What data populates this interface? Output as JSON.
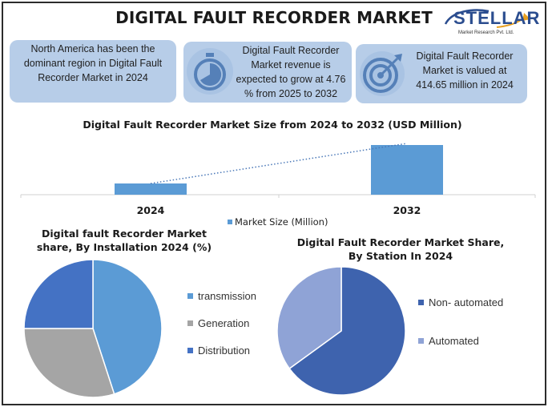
{
  "title": "DIGITAL FAULT RECORDER MARKET",
  "logo": {
    "brand": "STELLAR",
    "subtitle": "Market Research Pvt. Ltd."
  },
  "info_boxes": [
    {
      "text": "North America has been the dominant region in Digital Fault Recorder Market in 2024",
      "icon": ""
    },
    {
      "text": "Digital Fault Recorder Market revenue is expected to grow at 4.76 % from 2025 to 2032",
      "icon": "stopwatch-icon"
    },
    {
      "text": "Digital Fault Recorder Market is valued at 414.65 million in 2024",
      "icon": "target-icon"
    }
  ],
  "colors": {
    "box_bg": "#b7cde8",
    "bar": "#5b9bd5",
    "icon": "#5580b8",
    "transmission": "#5b9bd5",
    "generation": "#a5a5a5",
    "distribution": "#4472c4",
    "non_automated": "#3e63ae",
    "automated": "#8fa3d6"
  },
  "chart_data": [
    {
      "type": "bar",
      "title": "Digital Fault Recorder Market Size from 2024 to 2032 (USD Million)",
      "categories": [
        "2024",
        "2032"
      ],
      "series": [
        {
          "name": "Market Size (Million)",
          "values": [
            414.65,
            600.0
          ]
        }
      ],
      "trendline": true,
      "xlabel": "",
      "ylabel": ""
    },
    {
      "type": "pie",
      "title": "Digital fault Recorder Market share, By Installation 2024 (%)",
      "labels": [
        "transmission",
        "Generation",
        "Distribution"
      ],
      "values": [
        45,
        30,
        25
      ]
    },
    {
      "type": "pie",
      "title": "Digital Fault Recorder Market Share, By Station In 2024",
      "labels": [
        "Non- automated",
        "Automated"
      ],
      "values": [
        65,
        35
      ]
    }
  ]
}
